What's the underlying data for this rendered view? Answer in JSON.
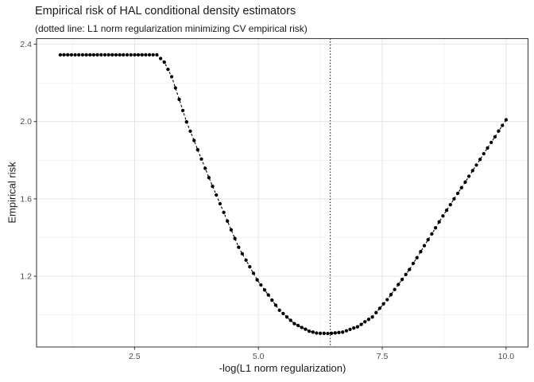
{
  "chart_data": {
    "type": "scatter",
    "title": "Empirical risk of HAL conditional density estimators",
    "subtitle": "(dotted line: L1 norm regularization minimizing CV empirical risk)",
    "xlabel": "-log(L1 norm regularization)",
    "ylabel": "Empirical risk",
    "xlim": [
      0.521,
      10.443
    ],
    "ylim": [
      0.834,
      2.429
    ],
    "x_ticks": [
      2.5,
      5.0,
      7.5,
      10.0
    ],
    "x_tick_labels": [
      "2.5",
      "5.0",
      "7.5",
      "10.0"
    ],
    "y_ticks": [
      1.2,
      1.6,
      2.0,
      2.4
    ],
    "y_tick_labels": [
      "1.2",
      "1.6",
      "2.0",
      "2.4"
    ],
    "x_minor": [
      1.25,
      3.75,
      6.25,
      8.75
    ],
    "y_minor": [
      1.0,
      1.4,
      1.8,
      2.2
    ],
    "grid": true,
    "legend": "none",
    "vline": {
      "x": 6.45,
      "style": "dotted"
    },
    "line_style": "dashed",
    "points": [
      [
        1.0,
        2.345
      ],
      [
        1.075,
        2.345
      ],
      [
        1.15,
        2.345
      ],
      [
        1.225,
        2.345
      ],
      [
        1.3,
        2.345
      ],
      [
        1.375,
        2.345
      ],
      [
        1.45,
        2.345
      ],
      [
        1.525,
        2.345
      ],
      [
        1.6,
        2.345
      ],
      [
        1.675,
        2.345
      ],
      [
        1.75,
        2.345
      ],
      [
        1.825,
        2.345
      ],
      [
        1.9,
        2.345
      ],
      [
        1.975,
        2.345
      ],
      [
        2.05,
        2.345
      ],
      [
        2.125,
        2.345
      ],
      [
        2.2,
        2.345
      ],
      [
        2.275,
        2.345
      ],
      [
        2.35,
        2.345
      ],
      [
        2.425,
        2.345
      ],
      [
        2.5,
        2.345
      ],
      [
        2.575,
        2.345
      ],
      [
        2.65,
        2.345
      ],
      [
        2.725,
        2.345
      ],
      [
        2.8,
        2.345
      ],
      [
        2.875,
        2.345
      ],
      [
        2.95,
        2.345
      ],
      [
        3.025,
        2.326
      ],
      [
        3.1,
        2.307
      ],
      [
        3.175,
        2.27
      ],
      [
        3.25,
        2.232
      ],
      [
        3.325,
        2.174
      ],
      [
        3.4,
        2.115
      ],
      [
        3.475,
        2.057
      ],
      [
        3.55,
        1.998
      ],
      [
        3.625,
        1.95
      ],
      [
        3.7,
        1.902
      ],
      [
        3.775,
        1.854
      ],
      [
        3.85,
        1.806
      ],
      [
        3.925,
        1.758
      ],
      [
        4.0,
        1.71
      ],
      [
        4.075,
        1.665
      ],
      [
        4.15,
        1.62
      ],
      [
        4.225,
        1.575
      ],
      [
        4.3,
        1.53
      ],
      [
        4.375,
        1.485
      ],
      [
        4.45,
        1.44
      ],
      [
        4.525,
        1.395
      ],
      [
        4.6,
        1.35
      ],
      [
        4.675,
        1.316
      ],
      [
        4.75,
        1.283
      ],
      [
        4.825,
        1.249
      ],
      [
        4.9,
        1.215
      ],
      [
        4.975,
        1.181
      ],
      [
        5.05,
        1.155
      ],
      [
        5.125,
        1.129
      ],
      [
        5.2,
        1.103
      ],
      [
        5.275,
        1.076
      ],
      [
        5.35,
        1.05
      ],
      [
        5.425,
        1.024
      ],
      [
        5.5,
        1.007
      ],
      [
        5.575,
        0.989
      ],
      [
        5.65,
        0.972
      ],
      [
        5.725,
        0.955
      ],
      [
        5.8,
        0.945
      ],
      [
        5.875,
        0.935
      ],
      [
        5.95,
        0.926
      ],
      [
        6.025,
        0.916
      ],
      [
        6.1,
        0.911
      ],
      [
        6.175,
        0.906
      ],
      [
        6.25,
        0.905
      ],
      [
        6.325,
        0.905
      ],
      [
        6.4,
        0.904
      ],
      [
        6.475,
        0.905
      ],
      [
        6.55,
        0.907
      ],
      [
        6.625,
        0.909
      ],
      [
        6.7,
        0.911
      ],
      [
        6.775,
        0.918
      ],
      [
        6.85,
        0.925
      ],
      [
        6.925,
        0.932
      ],
      [
        7.0,
        0.938
      ],
      [
        7.075,
        0.951
      ],
      [
        7.15,
        0.964
      ],
      [
        7.225,
        0.977
      ],
      [
        7.3,
        0.989
      ],
      [
        7.375,
        1.012
      ],
      [
        7.45,
        1.034
      ],
      [
        7.525,
        1.057
      ],
      [
        7.6,
        1.079
      ],
      [
        7.675,
        1.105
      ],
      [
        7.75,
        1.131
      ],
      [
        7.825,
        1.157
      ],
      [
        7.9,
        1.183
      ],
      [
        7.975,
        1.209
      ],
      [
        8.05,
        1.235
      ],
      [
        8.125,
        1.266
      ],
      [
        8.2,
        1.296
      ],
      [
        8.275,
        1.327
      ],
      [
        8.35,
        1.358
      ],
      [
        8.425,
        1.389
      ],
      [
        8.5,
        1.419
      ],
      [
        8.575,
        1.45
      ],
      [
        8.65,
        1.481
      ],
      [
        8.725,
        1.512
      ],
      [
        8.8,
        1.541
      ],
      [
        8.875,
        1.57
      ],
      [
        8.95,
        1.6
      ],
      [
        9.025,
        1.629
      ],
      [
        9.1,
        1.658
      ],
      [
        9.175,
        1.687
      ],
      [
        9.25,
        1.717
      ],
      [
        9.325,
        1.746
      ],
      [
        9.4,
        1.775
      ],
      [
        9.475,
        1.804
      ],
      [
        9.55,
        1.834
      ],
      [
        9.625,
        1.863
      ],
      [
        9.7,
        1.892
      ],
      [
        9.775,
        1.921
      ],
      [
        9.85,
        1.951
      ],
      [
        9.925,
        1.98
      ],
      [
        10.0,
        2.009
      ]
    ],
    "colors": {
      "point": "#000000",
      "line": "#000000",
      "vline": "#000000",
      "grid_major": "#e4e4e4",
      "grid_minor": "#f1f1f1",
      "panel_border": "#3f3f3f",
      "tick": "#333333",
      "tick_label": "#4d4d4d",
      "text": "#1a1a1a",
      "background": "#ffffff"
    }
  }
}
